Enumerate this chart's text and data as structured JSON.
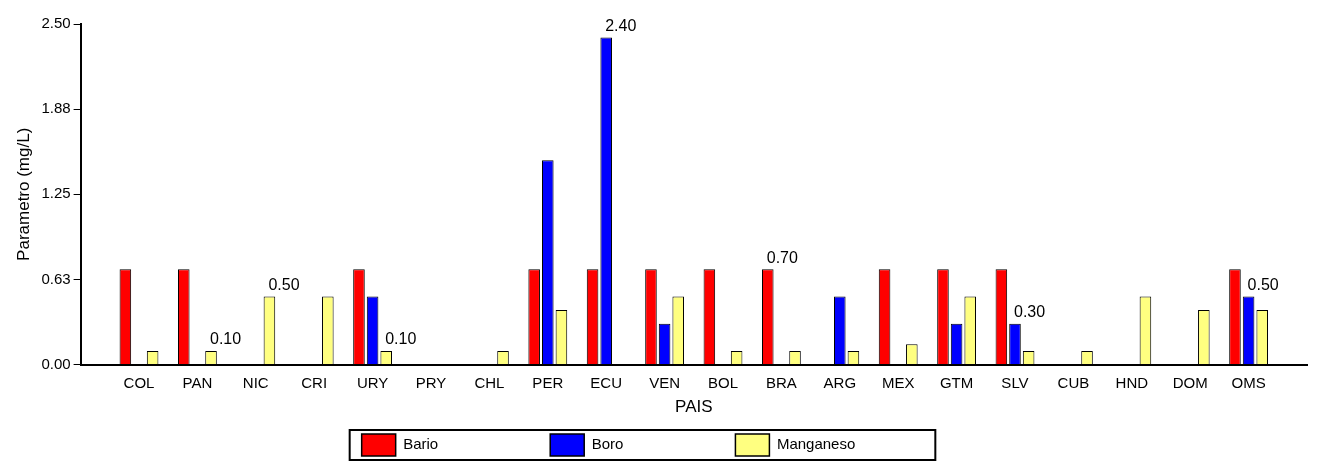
{
  "chart_data": {
    "type": "bar",
    "xlabel": "PAIS",
    "ylabel": "Parametro (mg/L)",
    "categories": [
      "COL",
      "PAN",
      "NIC",
      "CRI",
      "URY",
      "PRY",
      "CHL",
      "PER",
      "ECU",
      "VEN",
      "BOL",
      "BRA",
      "ARG",
      "MEX",
      "GTM",
      "SLV",
      "CUB",
      "HND",
      "DOM",
      "OMS"
    ],
    "series": [
      {
        "name": "Bario",
        "color": "#ff0000",
        "values": [
          0.7,
          0.7,
          null,
          null,
          0.7,
          null,
          null,
          0.7,
          0.7,
          0.7,
          0.7,
          0.7,
          null,
          0.7,
          0.7,
          0.7,
          null,
          null,
          null,
          0.7
        ],
        "value_labels": [
          null,
          null,
          null,
          null,
          null,
          null,
          null,
          null,
          null,
          null,
          null,
          "0.70",
          null,
          null,
          null,
          null,
          null,
          null,
          null,
          null
        ]
      },
      {
        "name": "Boro",
        "color": "#0000ff",
        "values": [
          null,
          null,
          null,
          null,
          0.5,
          null,
          null,
          1.5,
          2.4,
          0.3,
          null,
          null,
          0.5,
          null,
          0.3,
          0.3,
          null,
          null,
          null,
          0.5
        ],
        "value_labels": [
          null,
          null,
          null,
          null,
          null,
          null,
          null,
          null,
          "2.40",
          null,
          null,
          null,
          null,
          null,
          null,
          "0.30",
          null,
          null,
          null,
          "0.50"
        ]
      },
      {
        "name": "Manganeso",
        "color": "#ffff80",
        "values": [
          0.1,
          0.1,
          0.5,
          0.5,
          0.1,
          null,
          0.1,
          0.4,
          null,
          0.5,
          0.1,
          0.1,
          0.1,
          0.15,
          0.5,
          0.1,
          0.1,
          0.5,
          0.4,
          0.4
        ],
        "value_labels": [
          null,
          "0.10",
          "0.50",
          null,
          "0.10",
          null,
          null,
          null,
          null,
          null,
          null,
          null,
          null,
          null,
          null,
          null,
          null,
          null,
          null,
          null
        ]
      }
    ],
    "ylim": [
      0,
      2.5
    ],
    "yticks": [
      {
        "value": 0,
        "label": "0.00"
      },
      {
        "value": 0.625,
        "label": "0.63"
      },
      {
        "value": 1.25,
        "label": "1.25"
      },
      {
        "value": 1.875,
        "label": "1.88"
      },
      {
        "value": 2.5,
        "label": "2.50"
      }
    ],
    "grid": false,
    "legend": "bottom"
  }
}
